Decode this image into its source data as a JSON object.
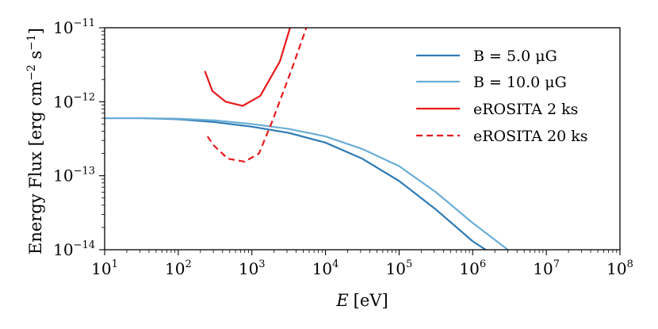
{
  "chart_data": {
    "type": "line",
    "xscale": "log",
    "yscale": "log",
    "xlabel_var": "E",
    "xlabel_unit": "[eV]",
    "ylabel": "Energy Flux [erg cm",
    "ylabel_exp1": "−2",
    "ylabel_mid": " s",
    "ylabel_exp2": "−1",
    "ylabel_end": "]",
    "xlim": [
      10,
      100000000
    ],
    "ylim": [
      1e-14,
      1e-11
    ],
    "x_ticks": [
      {
        "base": "10",
        "exp": "1",
        "value": 10
      },
      {
        "base": "10",
        "exp": "2",
        "value": 100
      },
      {
        "base": "10",
        "exp": "3",
        "value": 1000
      },
      {
        "base": "10",
        "exp": "4",
        "value": 10000
      },
      {
        "base": "10",
        "exp": "5",
        "value": 100000
      },
      {
        "base": "10",
        "exp": "6",
        "value": 1000000
      },
      {
        "base": "10",
        "exp": "7",
        "value": 10000000
      },
      {
        "base": "10",
        "exp": "8",
        "value": 100000000
      }
    ],
    "y_ticks": [
      {
        "base": "10",
        "exp": "−14",
        "value": 1e-14
      },
      {
        "base": "10",
        "exp": "−13",
        "value": 1e-13
      },
      {
        "base": "10",
        "exp": "−12",
        "value": 1e-12
      },
      {
        "base": "10",
        "exp": "−11",
        "value": 1e-11
      }
    ],
    "legend_position": "top-right",
    "series": [
      {
        "name": "B = 5.0 μG",
        "color": "#2f7bb6",
        "dash": "solid",
        "x": [
          10,
          31.6,
          100,
          316,
          1000,
          3160,
          10000,
          31600,
          100000,
          316000,
          1000000,
          1500000
        ],
        "y": [
          6e-13,
          6e-13,
          5.8e-13,
          5.3e-13,
          4.6e-13,
          3.8e-13,
          2.8e-13,
          1.7e-13,
          8.5e-14,
          3.5e-14,
          1.3e-14,
          1e-14
        ]
      },
      {
        "name": "B = 10.0 μG",
        "color": "#6baed6",
        "dash": "solid",
        "x": [
          10,
          31.6,
          100,
          316,
          1000,
          3160,
          10000,
          31600,
          100000,
          316000,
          1000000,
          3000000
        ],
        "y": [
          6e-13,
          6e-13,
          5.9e-13,
          5.6e-13,
          5e-13,
          4.3e-13,
          3.4e-13,
          2.3e-13,
          1.35e-13,
          6e-14,
          2.3e-14,
          1e-14
        ]
      },
      {
        "name": "eROSITA 2 ks",
        "color": "#e8191c",
        "dash": "solid",
        "x": [
          230,
          290,
          440,
          750,
          1300,
          2400,
          3300
        ],
        "y": [
          2.6e-12,
          1.4e-12,
          1e-12,
          8.8e-13,
          1.2e-12,
          3.5e-12,
          1e-11
        ]
      },
      {
        "name": "eROSITA 20 ks",
        "color": "#e8191c",
        "dash": "dashed",
        "x": [
          250,
          300,
          470,
          800,
          1250,
          1900,
          3500,
          5500
        ],
        "y": [
          3.4e-13,
          2.6e-13,
          1.7e-13,
          1.55e-13,
          2e-13,
          5.5e-13,
          2.8e-12,
          1e-11
        ]
      }
    ]
  }
}
